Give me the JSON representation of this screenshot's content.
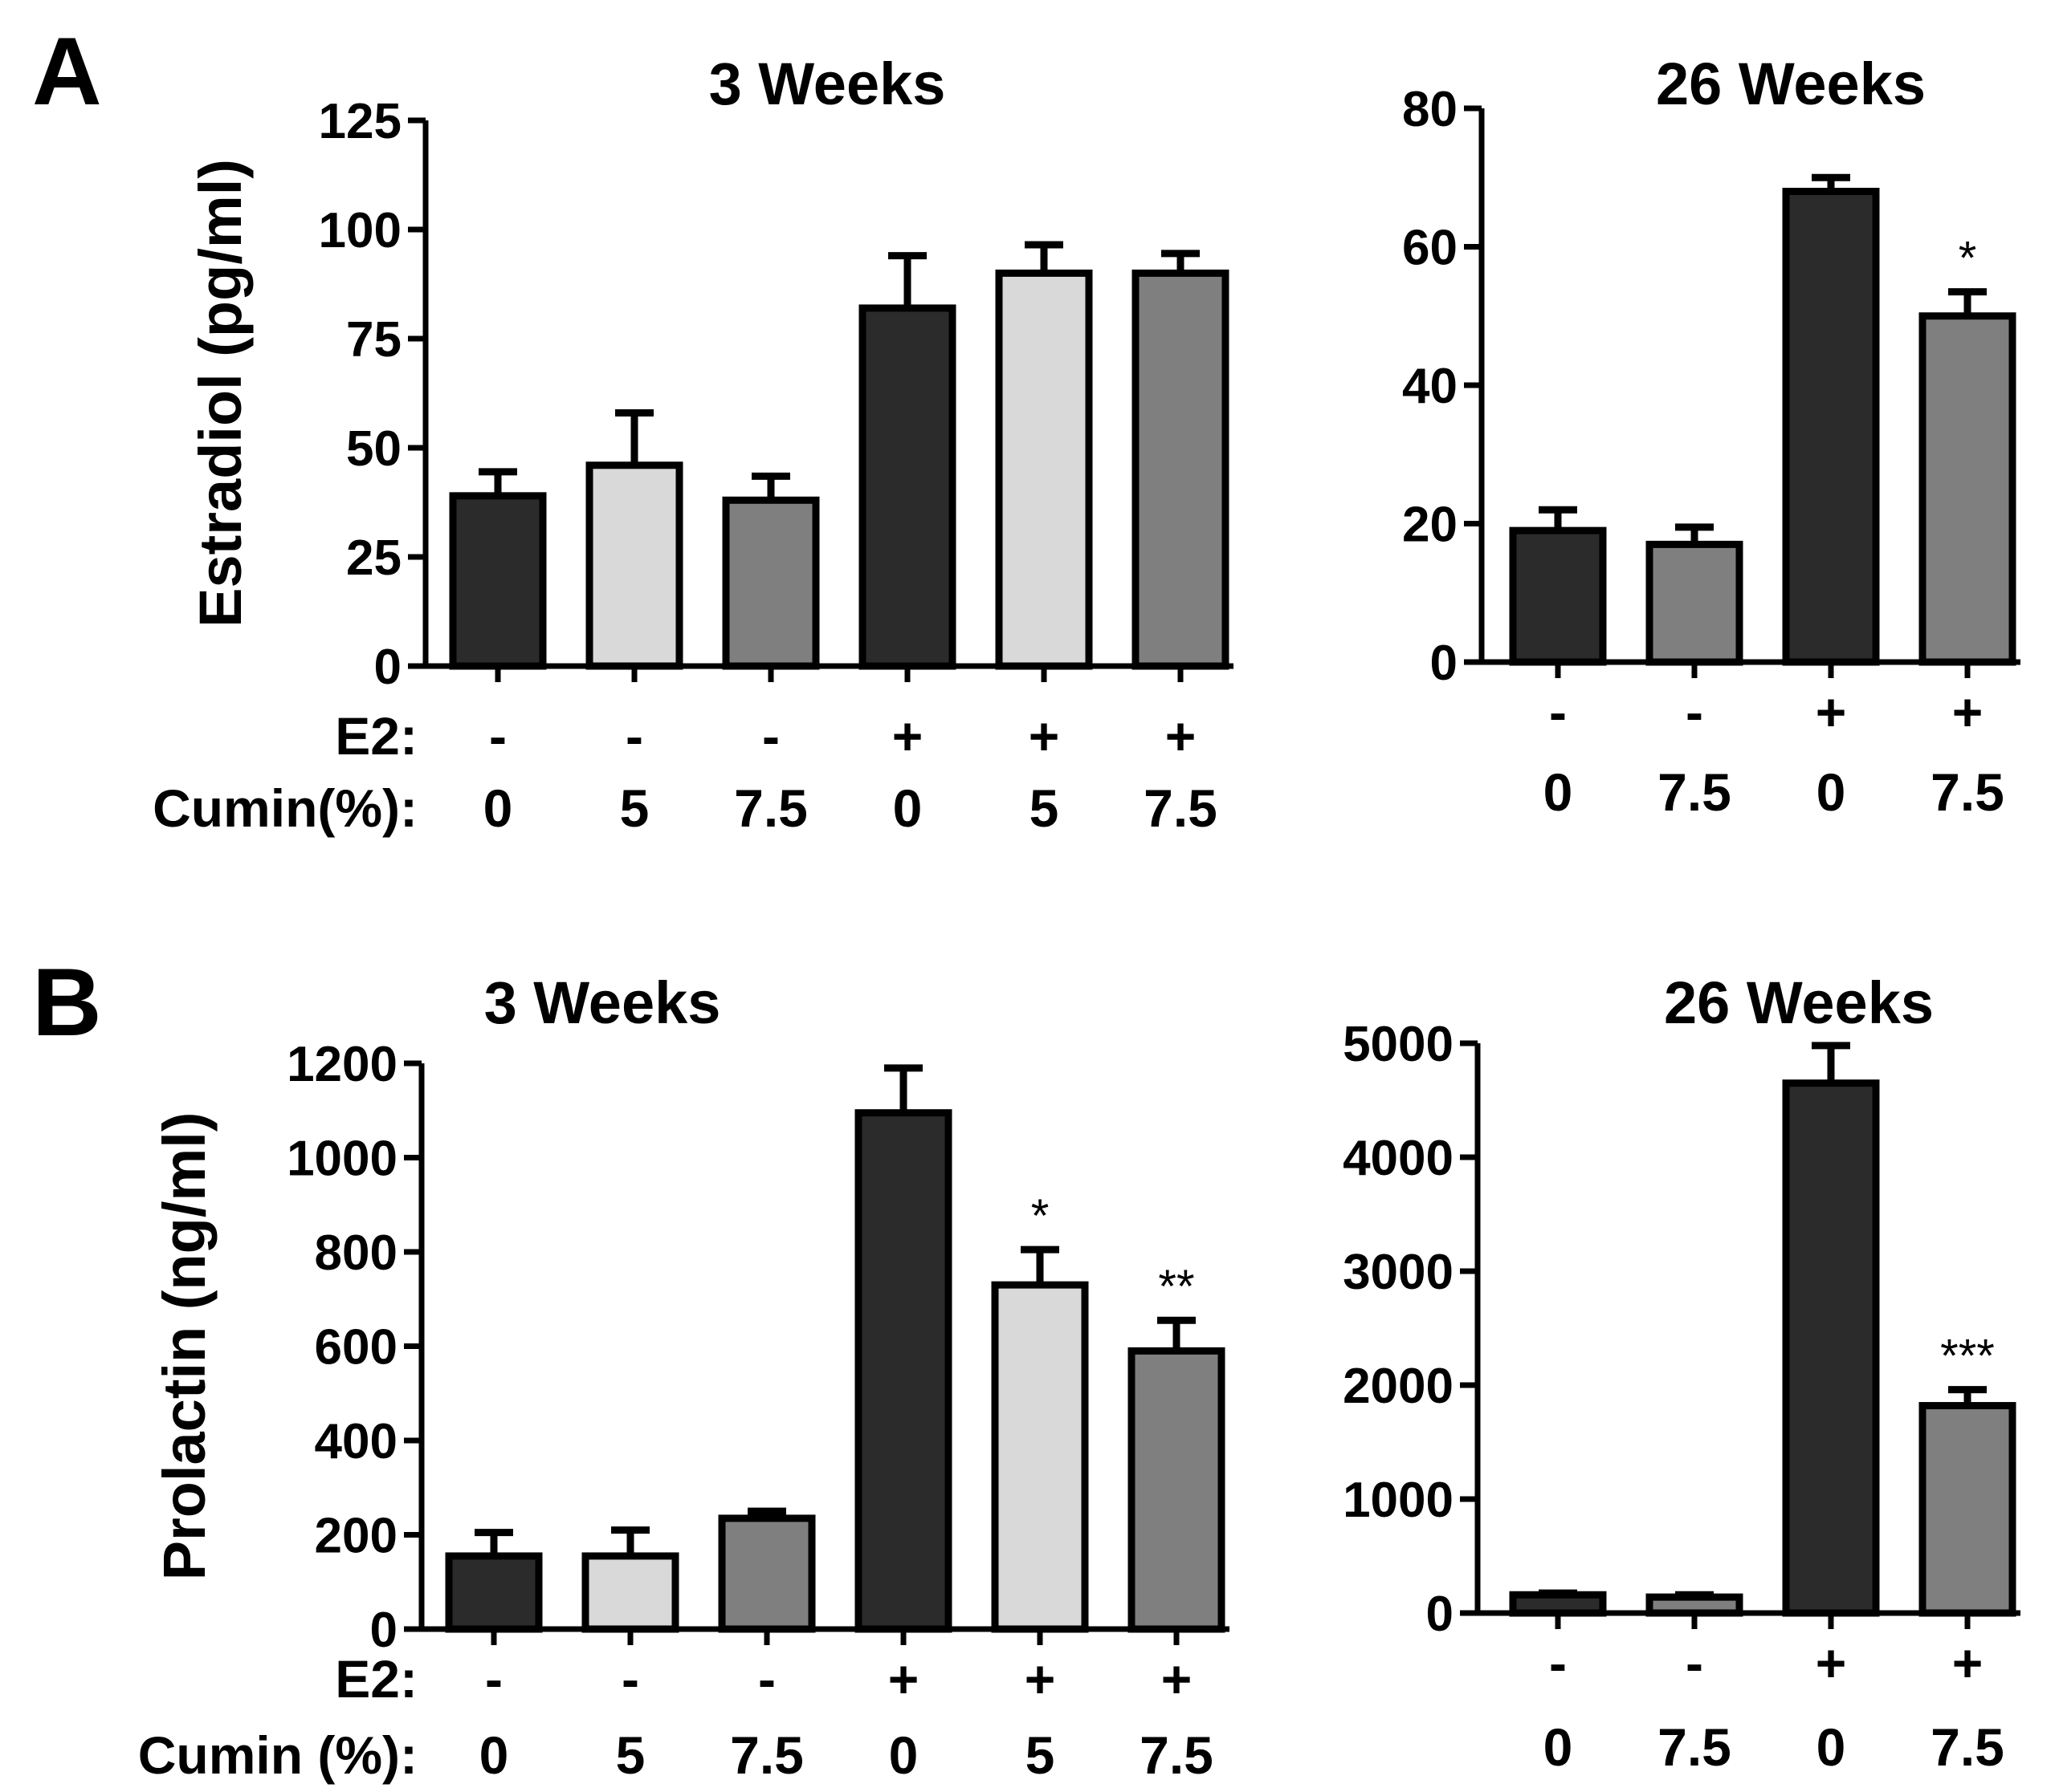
{
  "panel_labels": [
    "A",
    "B"
  ],
  "colors": {
    "black": "#2b2b2b",
    "light": "#d9d9d9",
    "grey": "#7f7f7f"
  },
  "chart_data": [
    {
      "id": "A_3w",
      "type": "bar",
      "title": "3 Weeks",
      "ylabel": "Estradiol (pg/ml)",
      "ylim": [
        0,
        125
      ],
      "yticks": [
        0,
        25,
        50,
        75,
        100,
        125
      ],
      "rows": [
        {
          "label": "E2:",
          "values": [
            "-",
            "-",
            "-",
            "+",
            "+",
            "+"
          ]
        },
        {
          "label": "Cumin(%):",
          "values": [
            "0",
            "5",
            "7.5",
            "0",
            "5",
            "7.5"
          ]
        }
      ],
      "values": [
        39,
        46,
        38,
        82,
        90,
        90
      ],
      "errors": [
        5.5,
        12,
        5.5,
        12,
        6.5,
        4.5
      ],
      "fills": [
        "black",
        "light",
        "grey",
        "black",
        "light",
        "grey"
      ],
      "significance": [
        "",
        "",
        "",
        "",
        "",
        ""
      ]
    },
    {
      "id": "A_26w",
      "type": "bar",
      "title": "26 Weeks",
      "ylabel": "",
      "ylim": [
        0,
        80
      ],
      "yticks": [
        0,
        20,
        40,
        60,
        80
      ],
      "rows": [
        {
          "label": "",
          "values": [
            "-",
            "-",
            "+",
            "+"
          ]
        },
        {
          "label": "",
          "values": [
            "0",
            "7.5",
            "0",
            "7.5"
          ]
        }
      ],
      "values": [
        19,
        17,
        68,
        50
      ],
      "errors": [
        3,
        2.5,
        2,
        3.5
      ],
      "fills": [
        "black",
        "grey",
        "black",
        "grey"
      ],
      "significance": [
        "",
        "",
        "",
        "*"
      ]
    },
    {
      "id": "B_3w",
      "type": "bar",
      "title": "3 Weeks",
      "ylabel": "Prolactin (ng/ml)",
      "ylim": [
        0,
        1200
      ],
      "yticks": [
        0,
        200,
        400,
        600,
        800,
        1000,
        1200
      ],
      "rows": [
        {
          "label": "E2:",
          "values": [
            "-",
            "-",
            "-",
            "+",
            "+",
            "+"
          ]
        },
        {
          "label": "Cumin (%):",
          "values": [
            "0",
            "5",
            "7.5",
            "0",
            "5",
            "7.5"
          ]
        }
      ],
      "values": [
        155,
        155,
        235,
        1095,
        730,
        590
      ],
      "errors": [
        50,
        55,
        15,
        95,
        75,
        65
      ],
      "fills": [
        "black",
        "light",
        "grey",
        "black",
        "light",
        "grey"
      ],
      "significance": [
        "",
        "",
        "",
        "",
        "*",
        "**"
      ]
    },
    {
      "id": "B_26w",
      "type": "bar",
      "title": "26 Weeks",
      "ylabel": "",
      "ylim": [
        0,
        5000
      ],
      "yticks": [
        0,
        1000,
        2000,
        3000,
        4000,
        5000
      ],
      "rows": [
        {
          "label": "",
          "values": [
            "-",
            "-",
            "+",
            "+"
          ]
        },
        {
          "label": "",
          "values": [
            "0",
            "7.5",
            "0",
            "7.5"
          ]
        }
      ],
      "values": [
        160,
        140,
        4650,
        1820
      ],
      "errors": [
        15,
        20,
        330,
        140
      ],
      "fills": [
        "black",
        "grey",
        "black",
        "grey"
      ],
      "significance": [
        "",
        "",
        "",
        "***"
      ]
    }
  ]
}
